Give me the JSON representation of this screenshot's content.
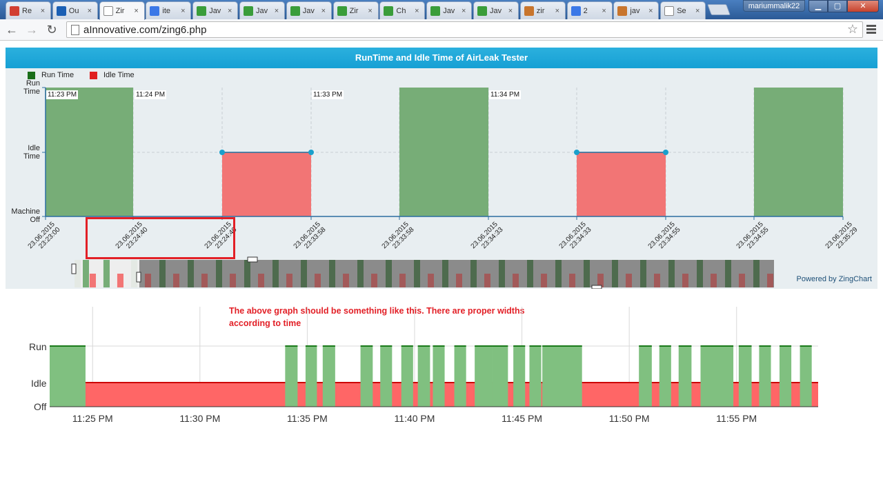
{
  "browser": {
    "tabs": [
      {
        "label": "Re",
        "icon": "gmail-icon",
        "color": "#d23f31"
      },
      {
        "label": "Ou",
        "icon": "outlook-icon",
        "color": "#1a5fb4"
      },
      {
        "label": "Zir",
        "icon": "page-icon",
        "color": "#ffffff",
        "active": true
      },
      {
        "label": "ite",
        "icon": "google-icon",
        "color": "#3b78e7"
      },
      {
        "label": "Jav",
        "icon": "plus-icon",
        "color": "#3a9d3a"
      },
      {
        "label": "Jav",
        "icon": "plus-icon",
        "color": "#3a9d3a"
      },
      {
        "label": "Jav",
        "icon": "plus-icon",
        "color": "#3a9d3a"
      },
      {
        "label": "Zir",
        "icon": "plus-icon",
        "color": "#3a9d3a"
      },
      {
        "label": "Ch",
        "icon": "plus-icon",
        "color": "#3a9d3a"
      },
      {
        "label": "Jav",
        "icon": "plus-icon",
        "color": "#3a9d3a"
      },
      {
        "label": "Jav",
        "icon": "plus-icon",
        "color": "#3a9d3a"
      },
      {
        "label": "zir",
        "icon": "java-icon",
        "color": "#c8752d"
      },
      {
        "label": "2 ",
        "icon": "google-icon",
        "color": "#3b78e7"
      },
      {
        "label": "jav",
        "icon": "java-icon",
        "color": "#c8752d"
      },
      {
        "label": "Se",
        "icon": "page-icon",
        "color": "#ffffff"
      }
    ],
    "user": "mariummalik22",
    "url": "aInnovative.com/zing6.php"
  },
  "zing": {
    "title": "RunTime and Idle Time of AirLeak Tester",
    "legend": [
      {
        "label": "Run Time",
        "color": "#1a6e1a"
      },
      {
        "label": "Idle Time",
        "color": "#e02020"
      }
    ],
    "y_labels": {
      "run_1": "Run",
      "run_2": "Time",
      "idle_1": "Idle",
      "idle_2": "Time",
      "off_1": "Machine",
      "off_2": "Off"
    },
    "tooltips": [
      "11:23 PM",
      "11:24 PM",
      "11:33 PM",
      "11:34 PM"
    ],
    "x_ticks": [
      [
        "23.06.2015",
        "23:23:00"
      ],
      [
        "23.06.2015",
        "23:24:40"
      ],
      [
        "23.06.2015",
        "23:24:40"
      ],
      [
        "23.06.2015",
        "23:33:58"
      ],
      [
        "23.06.2015",
        "23:33:58"
      ],
      [
        "23.06.2015",
        "23:34:33"
      ],
      [
        "23.06.2015",
        "23:34:33"
      ],
      [
        "23.06.2015",
        "23:34:55"
      ],
      [
        "23.06.2015",
        "23:34:55"
      ],
      [
        "23.06.2015",
        "23:35:29"
      ]
    ],
    "powered": "Powered by ZingChart",
    "colors": {
      "run": "#77ad77",
      "idle": "#f27575",
      "marker": "#1aa0cc"
    }
  },
  "chart_data": [
    {
      "type": "area",
      "title": "RunTime and Idle Time of AirLeak Tester",
      "levels": [
        "Machine Off",
        "Idle Time",
        "Run Time"
      ],
      "categories": [
        "23:23:00",
        "23:24:40",
        "23:24:40",
        "23:33:58",
        "23:33:58",
        "23:34:33",
        "23:34:33",
        "23:34:55",
        "23:34:55",
        "23:35:29"
      ],
      "series": [
        {
          "name": "Run Time",
          "values": [
            2,
            2,
            0,
            0,
            2,
            2,
            0,
            0,
            2,
            2
          ]
        },
        {
          "name": "Idle Time",
          "values": [
            0,
            0,
            1,
            1,
            0,
            0,
            1,
            1,
            0,
            0
          ]
        }
      ]
    },
    {
      "type": "area",
      "y_labels": [
        "Off",
        "Idle",
        "Run"
      ],
      "x_ticks": [
        "11:25 PM",
        "11:30 PM",
        "11:35 PM",
        "11:40 PM",
        "11:45 PM",
        "11:50 PM",
        "11:55 PM"
      ],
      "x_range_minutes": [
        23.0,
        58.8
      ],
      "run_intervals": [
        [
          23.0,
          24.67
        ],
        [
          33.97,
          34.55
        ],
        [
          34.92,
          35.45
        ],
        [
          35.72,
          36.3
        ],
        [
          37.48,
          38.05
        ],
        [
          38.4,
          38.95
        ],
        [
          39.38,
          39.93
        ],
        [
          40.15,
          40.72
        ],
        [
          40.85,
          41.4
        ],
        [
          41.85,
          42.4
        ],
        [
          42.8,
          43.6
        ],
        [
          43.6,
          44.35
        ],
        [
          44.6,
          45.15
        ],
        [
          45.35,
          45.9
        ],
        [
          45.95,
          47.8
        ],
        [
          50.45,
          51.05
        ],
        [
          51.4,
          51.95
        ],
        [
          52.3,
          52.9
        ],
        [
          53.32,
          54.85
        ],
        [
          55.1,
          55.7
        ],
        [
          56.05,
          56.6
        ],
        [
          57.0,
          57.55
        ],
        [
          57.95,
          58.5
        ]
      ]
    }
  ],
  "annotation": {
    "note": "The above graph should be something like this. There are proper widths according to time"
  }
}
